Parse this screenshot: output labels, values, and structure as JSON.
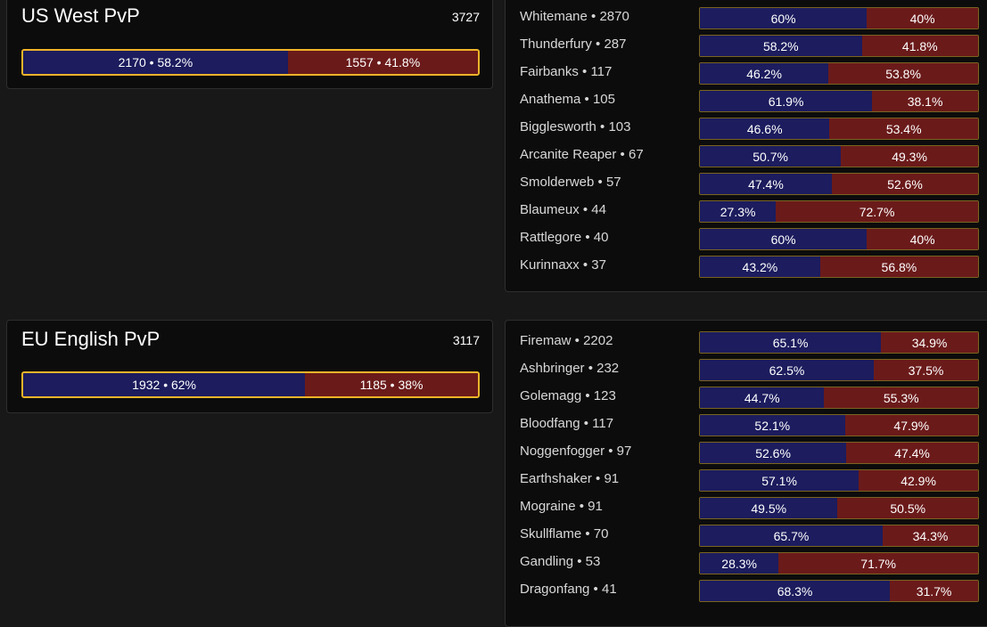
{
  "regions": [
    {
      "name": "US West PvP",
      "total": "3727",
      "alliance": {
        "label": "2170 • 58.2%",
        "fraction": 0.582
      },
      "horde": {
        "label": "1557 • 41.8%",
        "fraction": 0.418
      },
      "realms": [
        {
          "label": "Whitemane • 2870",
          "a": "60%",
          "h": "40%",
          "frac": 0.6
        },
        {
          "label": "Thunderfury • 287",
          "a": "58.2%",
          "h": "41.8%",
          "frac": 0.582
        },
        {
          "label": "Fairbanks • 117",
          "a": "46.2%",
          "h": "53.8%",
          "frac": 0.462
        },
        {
          "label": "Anathema • 105",
          "a": "61.9%",
          "h": "38.1%",
          "frac": 0.619
        },
        {
          "label": "Bigglesworth • 103",
          "a": "46.6%",
          "h": "53.4%",
          "frac": 0.466
        },
        {
          "label": "Arcanite Reaper • 67",
          "a": "50.7%",
          "h": "49.3%",
          "frac": 0.507
        },
        {
          "label": "Smolderweb • 57",
          "a": "47.4%",
          "h": "52.6%",
          "frac": 0.474
        },
        {
          "label": "Blaumeux • 44",
          "a": "27.3%",
          "h": "72.7%",
          "frac": 0.273
        },
        {
          "label": "Rattlegore • 40",
          "a": "60%",
          "h": "40%",
          "frac": 0.6
        },
        {
          "label": "Kurinnaxx • 37",
          "a": "43.2%",
          "h": "56.8%",
          "frac": 0.432
        }
      ]
    },
    {
      "name": "EU English PvP",
      "total": "3117",
      "alliance": {
        "label": "1932 • 62%",
        "fraction": 0.62
      },
      "horde": {
        "label": "1185 • 38%",
        "fraction": 0.38
      },
      "realms": [
        {
          "label": "Firemaw • 2202",
          "a": "65.1%",
          "h": "34.9%",
          "frac": 0.651
        },
        {
          "label": "Ashbringer • 232",
          "a": "62.5%",
          "h": "37.5%",
          "frac": 0.625
        },
        {
          "label": "Golemagg • 123",
          "a": "44.7%",
          "h": "55.3%",
          "frac": 0.447
        },
        {
          "label": "Bloodfang • 117",
          "a": "52.1%",
          "h": "47.9%",
          "frac": 0.521
        },
        {
          "label": "Noggenfogger • 97",
          "a": "52.6%",
          "h": "47.4%",
          "frac": 0.526
        },
        {
          "label": "Earthshaker • 91",
          "a": "57.1%",
          "h": "42.9%",
          "frac": 0.571
        },
        {
          "label": "Mograine • 91",
          "a": "49.5%",
          "h": "50.5%",
          "frac": 0.495
        },
        {
          "label": "Skullflame • 70",
          "a": "65.7%",
          "h": "34.3%",
          "frac": 0.657
        },
        {
          "label": "Gandling • 53",
          "a": "28.3%",
          "h": "71.7%",
          "frac": 0.283
        },
        {
          "label": "Dragonfang • 41",
          "a": "68.3%",
          "h": "31.7%",
          "frac": 0.683
        }
      ]
    }
  ],
  "colors": {
    "alliance": "#1c1c5e",
    "horde": "#6b1a1a",
    "highlight_border": "#f0b429",
    "bar_border": "#7a6420"
  }
}
